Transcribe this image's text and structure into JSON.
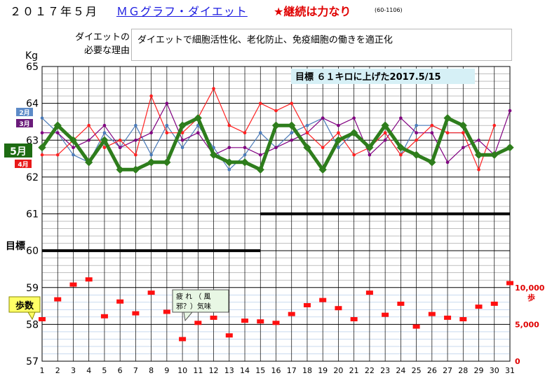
{
  "header": {
    "date": "２０１７年５月",
    "link": "ＭＧグラフ・ダイエット",
    "motto": "★継続は力なり",
    "code": "(60-1106)"
  },
  "reason": {
    "label_line1": "ダイエットの",
    "label_line2": "必要な理由",
    "text": "ダイエットで細胞活性化、老化防止、免疫細胞の働きを適正化"
  },
  "chart_data": {
    "type": "line",
    "ylabel": "Kg",
    "ylim": [
      57,
      65
    ],
    "yticks": [
      "57",
      "58",
      "59",
      "60",
      "61",
      "62",
      "63",
      "64",
      "65"
    ],
    "x": [
      1,
      2,
      3,
      4,
      5,
      6,
      7,
      8,
      9,
      10,
      11,
      12,
      13,
      14,
      15,
      16,
      17,
      18,
      19,
      20,
      21,
      22,
      23,
      24,
      25,
      26,
      27,
      28,
      29,
      30,
      31
    ],
    "series": [
      {
        "name": "5月",
        "color": "#2e7d1c",
        "values": [
          62.8,
          63.4,
          63.0,
          62.4,
          63.0,
          62.2,
          62.2,
          62.4,
          62.4,
          63.4,
          63.6,
          62.6,
          62.4,
          62.4,
          62.2,
          63.4,
          63.4,
          62.8,
          62.2,
          63.0,
          63.2,
          62.8,
          63.4,
          62.8,
          62.6,
          62.4,
          63.6,
          63.4,
          62.6,
          62.6,
          62.8
        ]
      },
      {
        "name": "4月",
        "color": "#ff2020",
        "values": [
          62.6,
          62.6,
          63.0,
          63.4,
          62.8,
          63.0,
          62.6,
          64.2,
          63.2,
          63.2,
          63.6,
          64.4,
          63.4,
          63.2,
          64.0,
          63.8,
          64.0,
          63.2,
          62.8,
          63.2,
          62.6,
          62.8,
          63.2,
          62.6,
          63.0,
          63.4,
          63.2,
          63.2,
          62.2,
          63.4,
          null
        ]
      },
      {
        "name": "3月",
        "color": "#800080",
        "values": [
          63.2,
          63.2,
          62.8,
          63.0,
          63.4,
          62.8,
          63.0,
          63.2,
          64.0,
          63.0,
          63.2,
          62.6,
          62.8,
          62.8,
          62.6,
          62.8,
          63.0,
          63.2,
          63.6,
          63.4,
          63.6,
          62.6,
          63.0,
          63.6,
          63.2,
          63.2,
          62.4,
          62.8,
          63.0,
          62.6,
          63.8
        ]
      },
      {
        "name": "2月",
        "color": "#4a7ab8",
        "values": [
          63.6,
          63.2,
          62.6,
          62.4,
          63.2,
          62.8,
          63.4,
          62.6,
          63.4,
          62.8,
          63.4,
          62.8,
          62.2,
          62.6,
          63.2,
          62.8,
          63.2,
          63.4,
          63.6,
          62.8,
          63.2,
          62.8,
          63.2,
          62.6,
          63.4,
          63.4,
          63.2,
          63.2,
          null,
          null,
          null
        ]
      }
    ],
    "steps": {
      "name": "歩数",
      "unit": "歩",
      "right_ticks": [
        "0",
        "5,000",
        "10,000"
      ],
      "values": [
        5700,
        8400,
        10400,
        11100,
        6100,
        8100,
        6500,
        9300,
        6700,
        3000,
        5200,
        5900,
        3500,
        5500,
        5400,
        5200,
        6400,
        7600,
        8300,
        7200,
        5700,
        9300,
        6300,
        7800,
        4700,
        6400,
        5900,
        5700,
        7400,
        7800,
        10600
      ]
    },
    "goals": [
      {
        "value": 60,
        "from_day": 1,
        "to_day": 15,
        "label": "目標"
      },
      {
        "value": 61,
        "from_day": 15,
        "to_day": 31
      }
    ],
    "annotations": {
      "goal_note": "目標 ６１キロに上げた2017.5/15",
      "callout_line1": "疲 れ （ 風",
      "callout_line2": "邪？）気味",
      "steps_label": "歩数"
    }
  }
}
